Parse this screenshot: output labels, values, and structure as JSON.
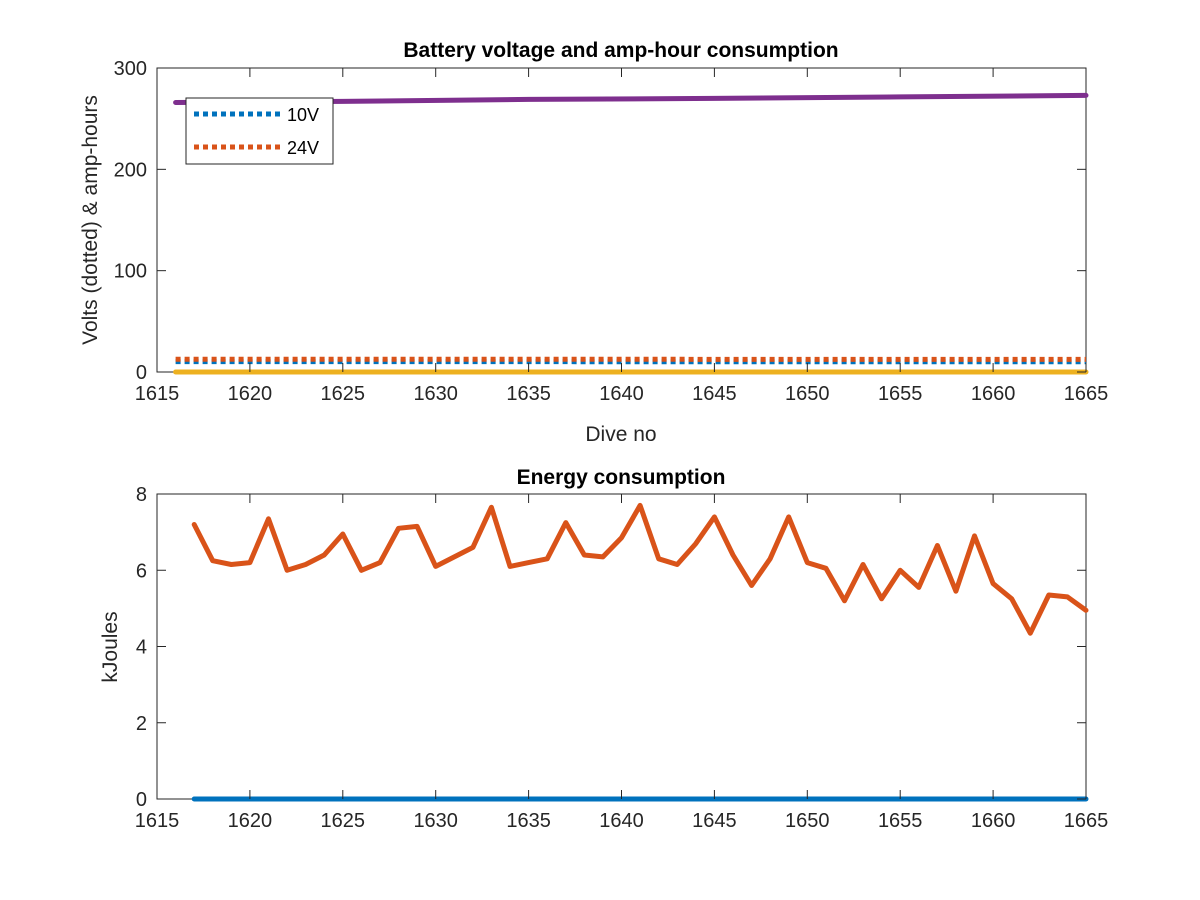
{
  "chart_data": [
    {
      "type": "line",
      "title": "Battery voltage and amp-hour consumption",
      "xlabel": "Dive no",
      "ylabel": "Volts (dotted) & amp-hours",
      "xlim": [
        1615,
        1665
      ],
      "ylim": [
        0,
        300
      ],
      "xticks": [
        1615,
        1620,
        1625,
        1630,
        1635,
        1640,
        1645,
        1650,
        1655,
        1660,
        1665
      ],
      "yticks": [
        0,
        100,
        200,
        300
      ],
      "grid": false,
      "legend_position": "top-left",
      "series": [
        {
          "name": "10V",
          "style": "dotted",
          "color": "#0072BD",
          "x": [
            1616,
            1665
          ],
          "y": [
            10.3,
            10.1
          ]
        },
        {
          "name": "24V",
          "style": "dotted",
          "color": "#D95319",
          "x": [
            1616,
            1665
          ],
          "y": [
            12.6,
            12.4
          ]
        },
        {
          "style": "solid",
          "color": "#EDB120",
          "x": [
            1616,
            1665
          ],
          "y": [
            0,
            0
          ]
        },
        {
          "style": "solid",
          "color": "#7E2F8E",
          "x": [
            1616,
            1625,
            1635,
            1645,
            1655,
            1665
          ],
          "y": [
            266,
            267,
            269,
            270,
            271.5,
            273
          ]
        }
      ]
    },
    {
      "type": "line",
      "title": "Energy consumption",
      "ylabel": "kJoules",
      "xlim": [
        1615,
        1665
      ],
      "ylim": [
        0,
        8
      ],
      "xticks": [
        1615,
        1620,
        1625,
        1630,
        1635,
        1640,
        1645,
        1650,
        1655,
        1660,
        1665
      ],
      "yticks": [
        0,
        2,
        4,
        6,
        8
      ],
      "grid": false,
      "series": [
        {
          "style": "solid",
          "color": "#0072BD",
          "x": [
            1617,
            1665
          ],
          "y": [
            0,
            0
          ]
        },
        {
          "style": "solid",
          "color": "#D95319",
          "x": [
            1617,
            1618,
            1619,
            1620,
            1621,
            1622,
            1623,
            1624,
            1625,
            1626,
            1627,
            1628,
            1629,
            1630,
            1631,
            1632,
            1633,
            1634,
            1635,
            1636,
            1637,
            1638,
            1639,
            1640,
            1641,
            1642,
            1643,
            1644,
            1645,
            1646,
            1647,
            1648,
            1649,
            1650,
            1651,
            1652,
            1653,
            1654,
            1655,
            1656,
            1657,
            1658,
            1659,
            1660,
            1661,
            1662,
            1663,
            1664,
            1665
          ],
          "y": [
            7.2,
            6.25,
            6.15,
            6.2,
            7.35,
            6.0,
            6.15,
            6.4,
            6.95,
            6.0,
            6.2,
            7.1,
            7.15,
            6.1,
            6.35,
            6.6,
            7.65,
            6.1,
            6.2,
            6.3,
            7.25,
            6.4,
            6.35,
            6.85,
            7.7,
            6.3,
            6.15,
            6.7,
            7.4,
            6.4,
            5.6,
            6.3,
            7.4,
            6.2,
            6.05,
            5.2,
            6.15,
            5.25,
            6.0,
            5.55,
            6.65,
            5.45,
            6.9,
            5.65,
            5.25,
            4.35,
            5.35,
            5.3,
            4.95
          ]
        }
      ]
    }
  ]
}
